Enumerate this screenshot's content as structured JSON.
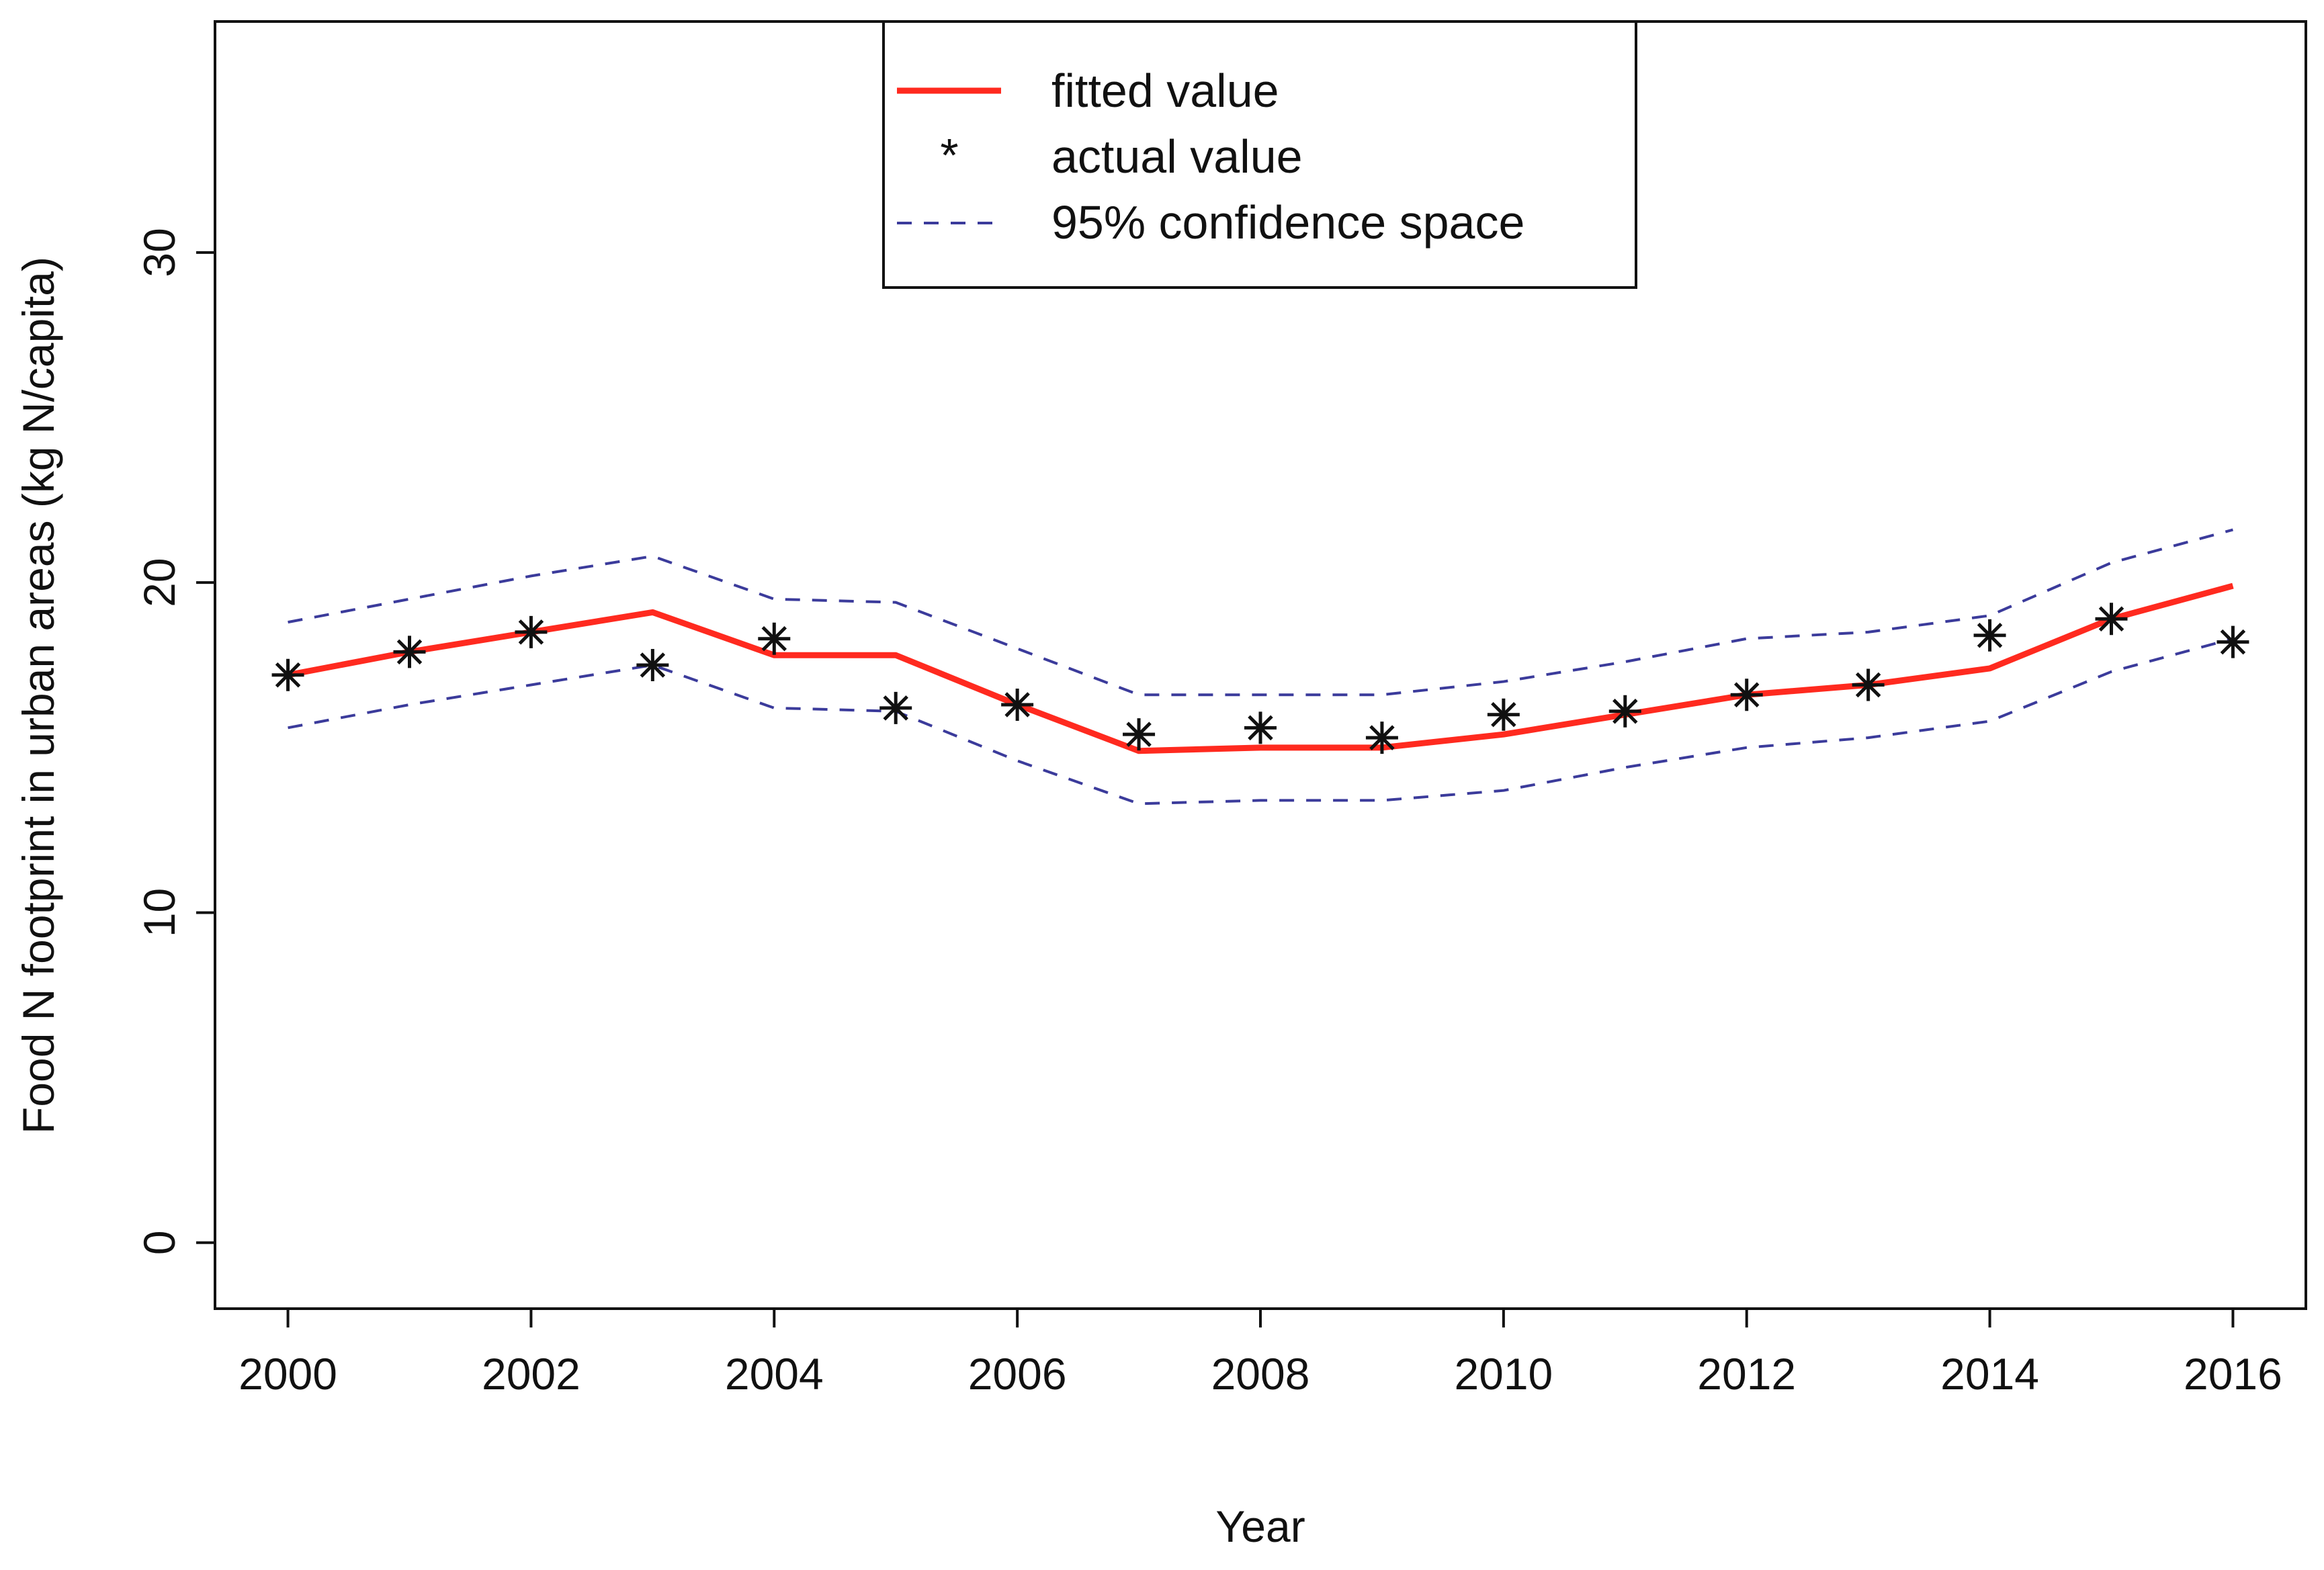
{
  "chart_data": {
    "type": "line",
    "title": "",
    "xlabel": "Year",
    "ylabel": "Food N footprint in urban areas (kg N/capita)",
    "x": [
      2000,
      2001,
      2002,
      2003,
      2004,
      2005,
      2006,
      2007,
      2008,
      2009,
      2010,
      2011,
      2012,
      2013,
      2014,
      2015,
      2016
    ],
    "xticks": [
      "2000",
      "2002",
      "2004",
      "2006",
      "2008",
      "2010",
      "2012",
      "2014",
      "2016"
    ],
    "yticks": [
      "0",
      "10",
      "20",
      "30"
    ],
    "xlim": [
      1999.4,
      2016.6
    ],
    "ylim": [
      -2,
      37
    ],
    "series": [
      {
        "name": "fitted value",
        "style": "solid",
        "color": "#ff2a1f",
        "values": [
          17.2,
          17.9,
          18.5,
          19.1,
          17.8,
          17.8,
          16.3,
          14.9,
          15.0,
          15.0,
          15.4,
          16.0,
          16.6,
          16.9,
          17.4,
          18.9,
          19.9
        ]
      },
      {
        "name": "actual value",
        "style": "points",
        "color": "#111111",
        "values": [
          17.2,
          17.9,
          18.5,
          17.5,
          18.3,
          16.2,
          16.3,
          15.4,
          15.6,
          15.3,
          16.0,
          16.1,
          16.6,
          16.9,
          18.4,
          18.9,
          18.2
        ]
      },
      {
        "name": "95% confidence space (upper)",
        "style": "dashed",
        "color": "#3b3b9b",
        "values": [
          18.8,
          19.5,
          20.2,
          20.8,
          19.5,
          19.4,
          18.0,
          16.6,
          16.6,
          16.6,
          17.0,
          17.6,
          18.3,
          18.5,
          19.0,
          20.6,
          21.6
        ]
      },
      {
        "name": "95% confidence space (lower)",
        "style": "dashed",
        "color": "#3b3b9b",
        "values": [
          15.6,
          16.3,
          16.9,
          17.5,
          16.2,
          16.1,
          14.6,
          13.3,
          13.4,
          13.4,
          13.7,
          14.4,
          15.0,
          15.3,
          15.8,
          17.3,
          18.3
        ]
      }
    ],
    "legend": {
      "placement": "top-center",
      "entries": [
        {
          "label": "fitted value",
          "symbol": "line",
          "color": "#ff2a1f"
        },
        {
          "label": "actual value",
          "symbol": "*",
          "color": "#111111"
        },
        {
          "label": "95% confidence space",
          "symbol": "dashed",
          "color": "#3b3b9b"
        }
      ]
    }
  }
}
